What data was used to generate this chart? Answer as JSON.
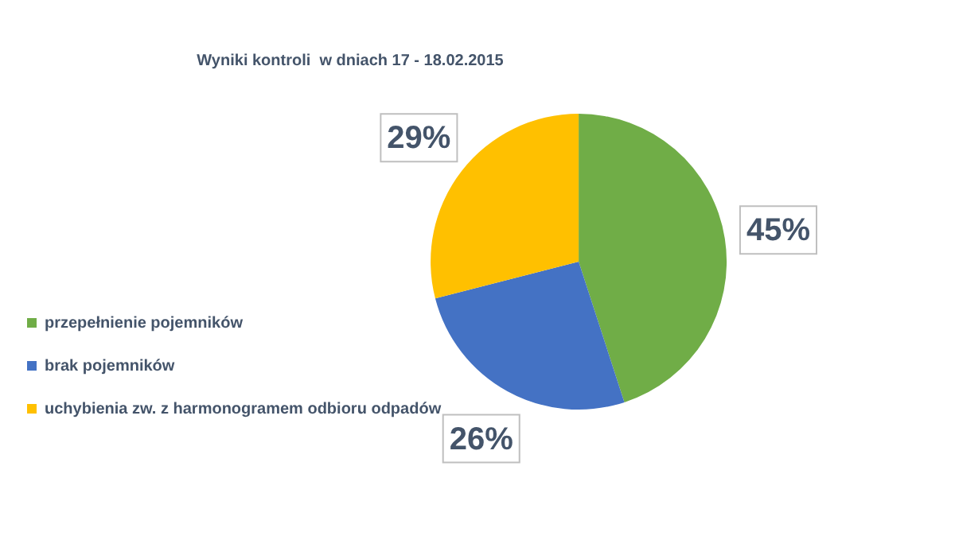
{
  "chart_data": {
    "type": "pie",
    "title": "Wyniki kontroli  w dniach 17 - 18.02.2015",
    "categories": [
      "przepełnienie pojemników",
      "brak pojemników",
      "uchybienia zw. z harmonogramem odbioru odpadów"
    ],
    "values": [
      45,
      26,
      29
    ],
    "colors": [
      "#70ad47",
      "#4472c4",
      "#ffc000"
    ],
    "value_labels": [
      "45%",
      "26%",
      "29%"
    ],
    "legend": "bottom left"
  }
}
